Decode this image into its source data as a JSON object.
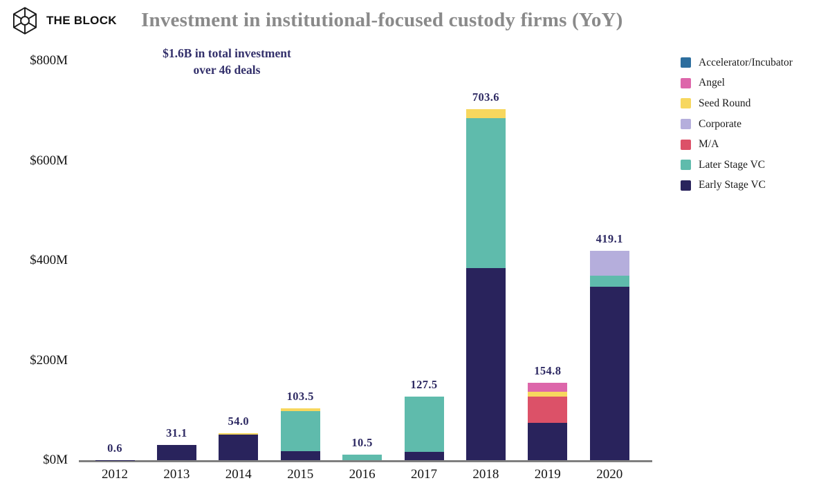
{
  "logo": {
    "text": "THE BLOCK"
  },
  "header": {
    "title": "Investment in institutional-focused custody firms (YoY)",
    "subtitle_line1": "$1.6B in total investment",
    "subtitle_line2": "over 46 deals"
  },
  "colors": {
    "title_gray": "#8a8a8a",
    "annotation_navy": "#33306b",
    "axis_line_gray": "#7f7f7f",
    "value_label_navy": "#2e2a63"
  },
  "chart_data": {
    "type": "bar",
    "stacked": true,
    "title": "Investment in institutional-focused custody firms (YoY)",
    "annotation": "$1.6B in total investment over 46 deals",
    "categories": [
      "2012",
      "2013",
      "2014",
      "2015",
      "2016",
      "2017",
      "2018",
      "2019",
      "2020"
    ],
    "series": [
      {
        "name": "Accelerator/Incubator",
        "color": "#2d6e9e",
        "values": [
          0,
          0,
          0,
          0,
          0,
          0,
          0,
          0,
          0
        ]
      },
      {
        "name": "Angel",
        "color": "#dd66aa",
        "values": [
          0,
          0,
          0,
          0,
          0,
          0,
          0,
          18.3,
          0
        ]
      },
      {
        "name": "Seed Round",
        "color": "#f7d75e",
        "values": [
          0,
          0,
          2.5,
          5.5,
          0,
          0,
          18.6,
          9.5,
          0
        ]
      },
      {
        "name": "Corporate",
        "color": "#b5aedc",
        "values": [
          0,
          0,
          0,
          0,
          0,
          0,
          0,
          0,
          50.1
        ]
      },
      {
        "name": "M/A",
        "color": "#dc5168",
        "values": [
          0,
          0,
          0,
          0,
          0,
          0,
          0,
          52,
          0
        ]
      },
      {
        "name": "Later Stage VC",
        "color": "#5fbbac",
        "values": [
          0,
          0,
          0,
          80,
          10.5,
          110.5,
          300,
          0,
          22
        ]
      },
      {
        "name": "Early Stage VC",
        "color": "#29235c",
        "values": [
          0.6,
          31.1,
          51.5,
          18,
          0,
          17,
          385,
          75,
          347
        ]
      }
    ],
    "stack_order_bottom_to_top": [
      "Early Stage VC",
      "Later Stage VC",
      "M/A",
      "Corporate",
      "Seed Round",
      "Angel",
      "Accelerator/Incubator"
    ],
    "totals": [
      0.6,
      31.1,
      54.0,
      103.5,
      10.5,
      127.5,
      703.6,
      154.8,
      419.1
    ],
    "total_labels": [
      "0.6",
      "31.1",
      "54.0",
      "103.5",
      "10.5",
      "127.5",
      "703.6",
      "154.8",
      "419.1"
    ],
    "y_ticks": [
      {
        "label": "$800M",
        "value": 800
      },
      {
        "label": "$600M",
        "value": 600
      },
      {
        "label": "$400M",
        "value": 400
      },
      {
        "label": "$200M",
        "value": 200
      },
      {
        "label": "$0M",
        "value": 0
      }
    ],
    "ylim": [
      0,
      800
    ],
    "xlabel": "",
    "ylabel": "",
    "grid": false,
    "legend_position": "right"
  }
}
